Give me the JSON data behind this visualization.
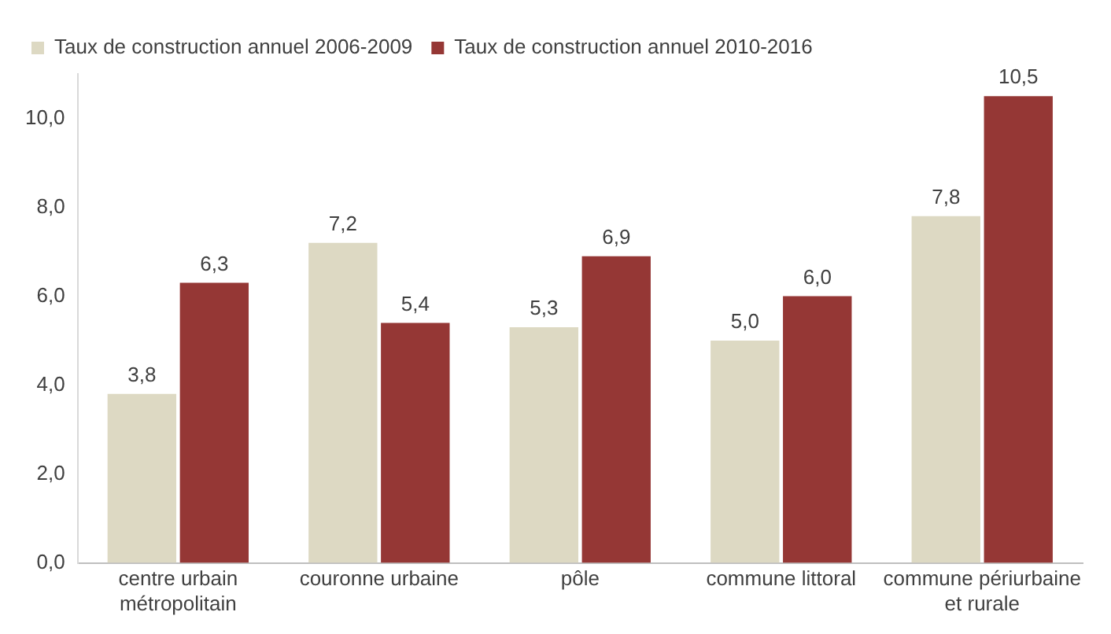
{
  "chart_data": {
    "type": "bar",
    "categories": [
      "centre urbain métropolitain",
      "couronne urbaine",
      "pôle",
      "commune littoral",
      "commune périurbaine et rurale"
    ],
    "series": [
      {
        "name": "Taux de construction annuel 2006-2009",
        "color": "#ddd9c3",
        "values": [
          3.8,
          7.2,
          5.3,
          5.0,
          7.8
        ],
        "value_labels": [
          "3,8",
          "7,2",
          "5,3",
          "5,0",
          "7,8"
        ]
      },
      {
        "name": "Taux de construction annuel 2010-2016",
        "color": "#953735",
        "values": [
          6.3,
          5.4,
          6.9,
          6.0,
          10.5
        ],
        "value_labels": [
          "6,3",
          "5,4",
          "6,9",
          "6,0",
          "10,5"
        ]
      }
    ],
    "ylim": [
      0,
      11
    ],
    "yticks": [
      {
        "value": 0,
        "label": "0,0"
      },
      {
        "value": 2,
        "label": "2,0"
      },
      {
        "value": 4,
        "label": "4,0"
      },
      {
        "value": 6,
        "label": "6,0"
      },
      {
        "value": 8,
        "label": "8,0"
      },
      {
        "value": 10,
        "label": "10,0"
      }
    ],
    "grid": false,
    "legend": "top left"
  }
}
